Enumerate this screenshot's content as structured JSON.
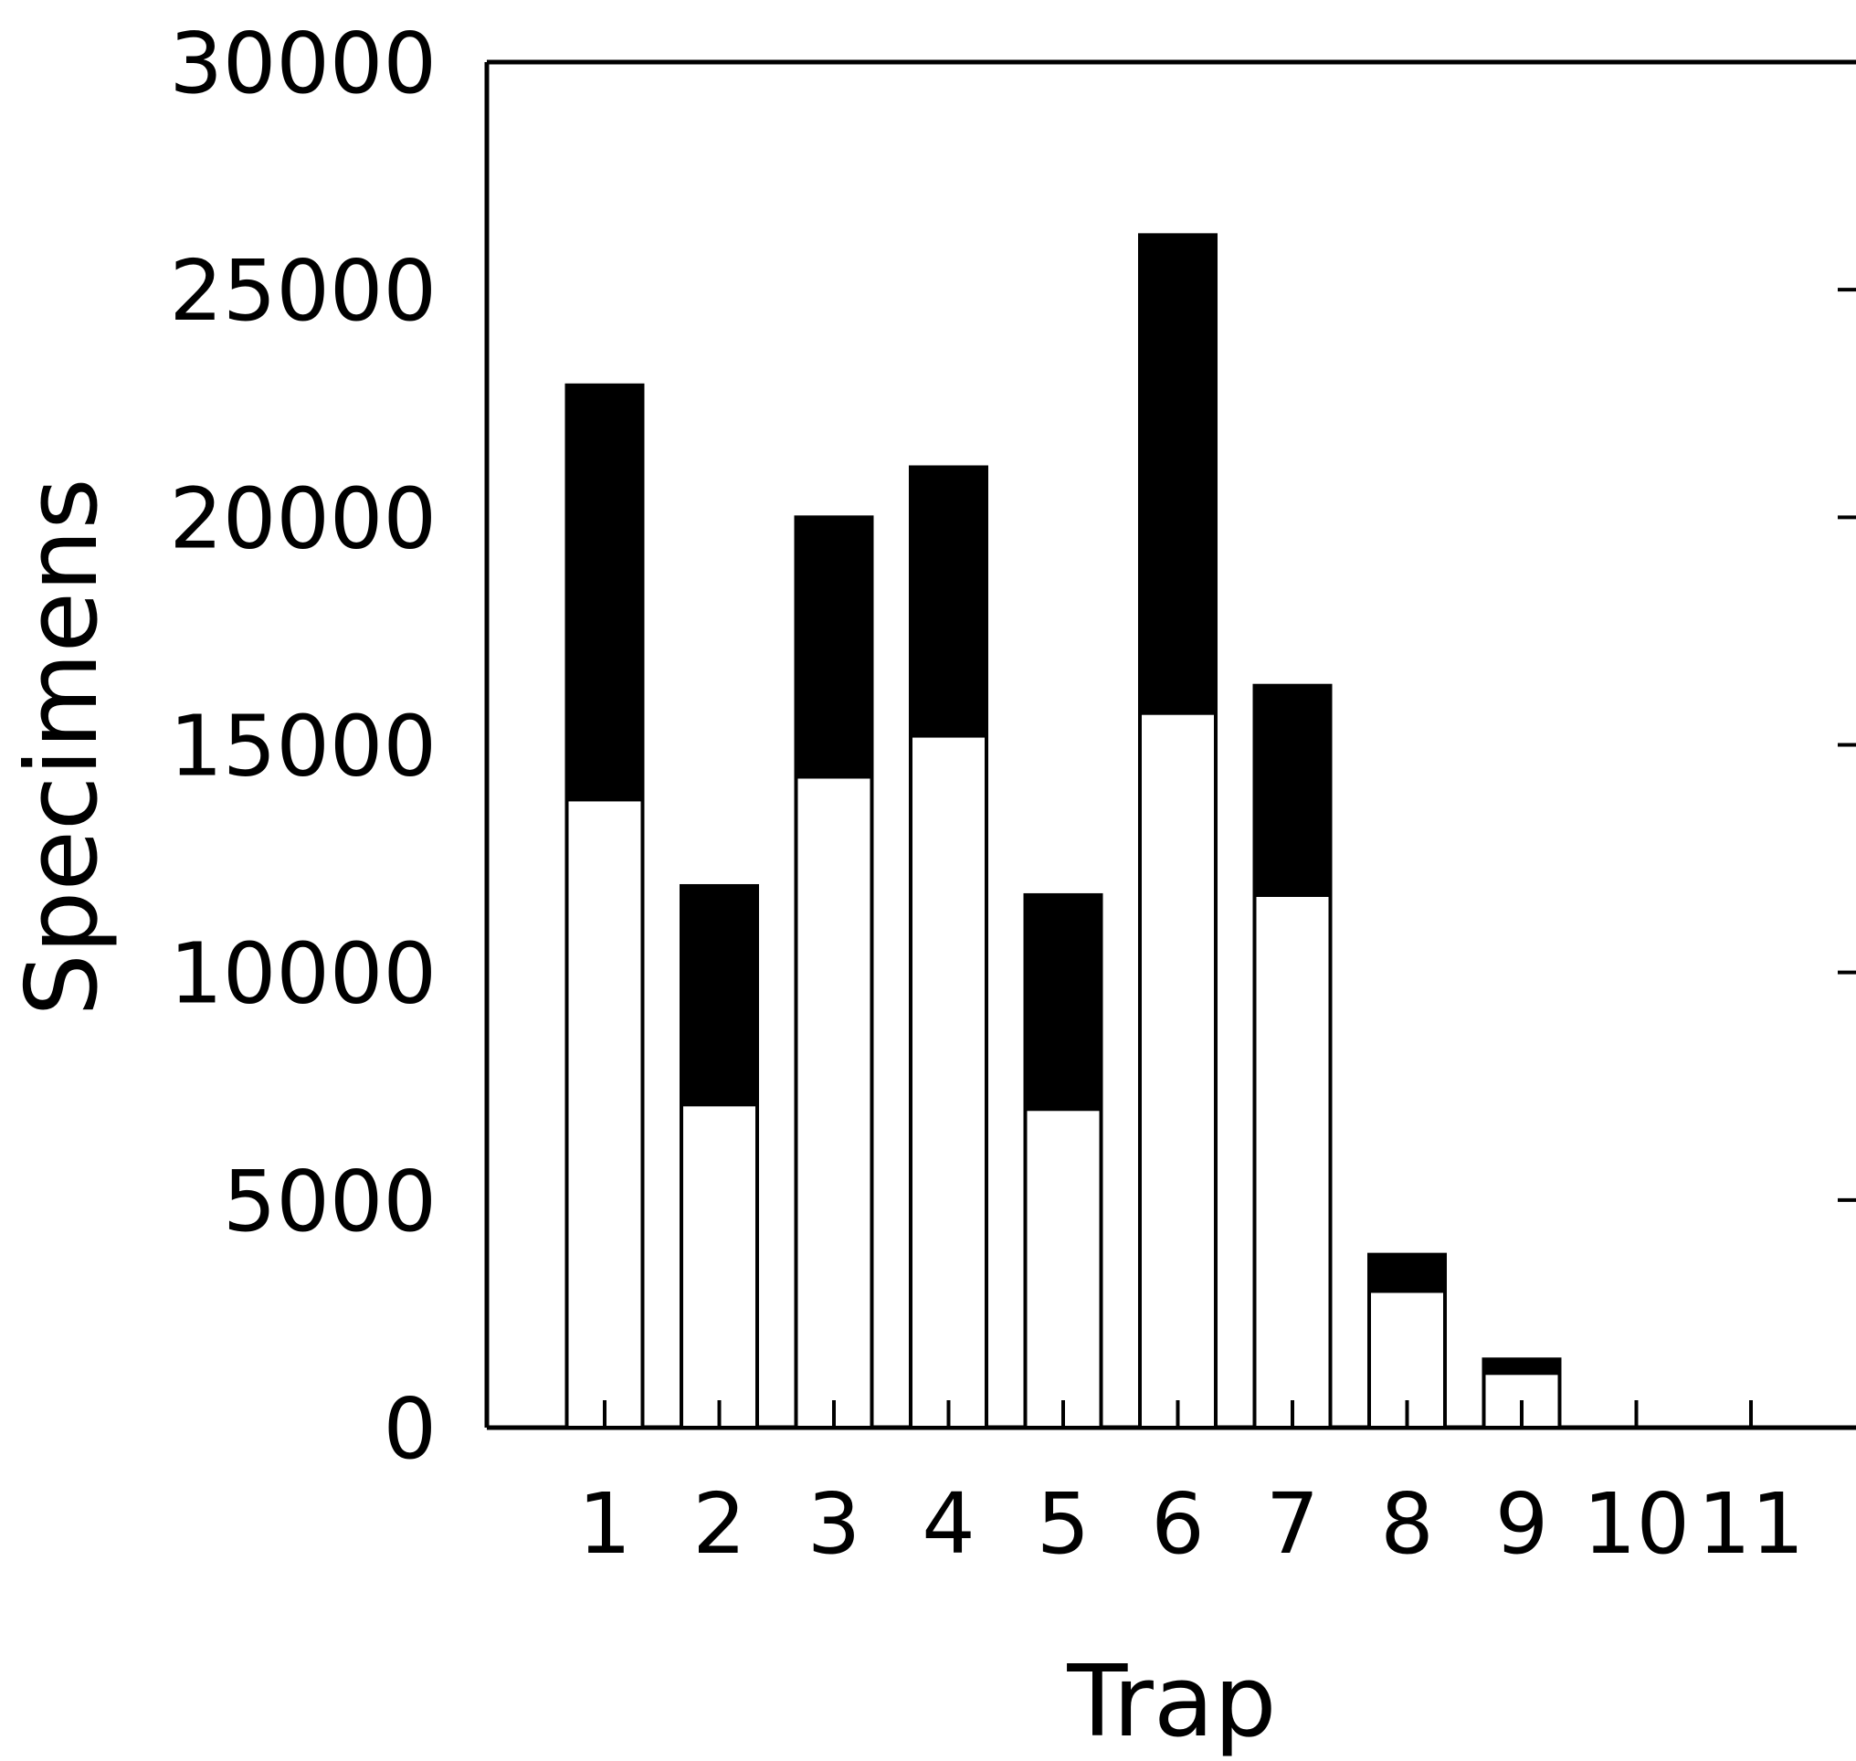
{
  "chart_data": {
    "type": "bar",
    "stacked": true,
    "title": "",
    "xlabel": "Trap",
    "ylabel": "Specimens",
    "categories": [
      "1",
      "2",
      "3",
      "4",
      "5",
      "6",
      "7",
      "8",
      "9",
      "10",
      "11"
    ],
    "ylim": [
      0,
      30000
    ],
    "yticks": [
      "0",
      "5000",
      "10000",
      "15000",
      "20000",
      "25000",
      "30000"
    ],
    "grid": false,
    "legend": "none",
    "series": [
      {
        "color": "#ffffff",
        "values": [
          13800,
          7100,
          14300,
          15200,
          7000,
          15700,
          11700,
          3000,
          1200,
          0,
          0
        ]
      },
      {
        "color": "#000000",
        "values": [
          9100,
          4800,
          5700,
          5900,
          4700,
          10500,
          4600,
          800,
          300,
          0,
          0
        ]
      }
    ]
  }
}
